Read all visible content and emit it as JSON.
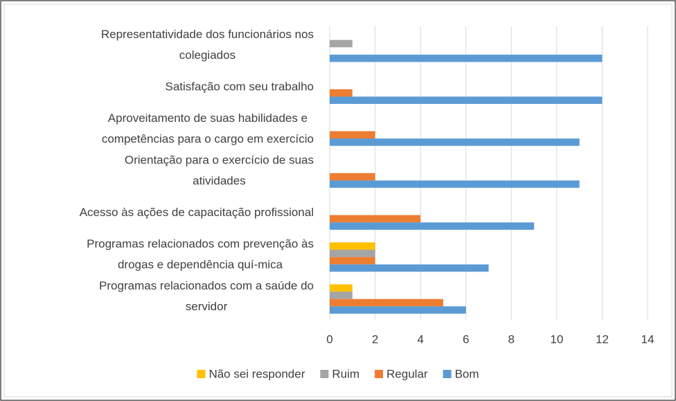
{
  "chart_data": {
    "type": "bar",
    "orientation": "horizontal",
    "categories": [
      [
        "Representatividade dos funcionários nos",
        "colegiados"
      ],
      [
        "Satisfação com seu trabalho"
      ],
      [
        "Aproveitamento de suas habilidades e",
        "competências para o cargo em exercício"
      ],
      [
        "Orientação para o exercício de suas",
        "atividades"
      ],
      [
        "Acesso às ações de capacitação profissional"
      ],
      [
        "Programas relacionados com prevenção às",
        "drogas e dependência quí-mica"
      ],
      [
        "Programas relacionados com a saúde do",
        "servidor"
      ]
    ],
    "series": [
      {
        "name": "Não sei responder",
        "color": "#FFC000",
        "values": [
          0,
          0,
          0,
          0,
          0,
          2,
          1
        ]
      },
      {
        "name": "Ruim",
        "color": "#A5A5A5",
        "values": [
          1,
          0,
          0,
          0,
          0,
          2,
          1
        ]
      },
      {
        "name": "Regular",
        "color": "#ED7D31",
        "values": [
          0,
          1,
          2,
          2,
          4,
          2,
          5
        ]
      },
      {
        "name": "Bom",
        "color": "#5B9BD5",
        "values": [
          12,
          12,
          11,
          11,
          9,
          7,
          6
        ]
      }
    ],
    "xlim": [
      0,
      14
    ],
    "xticks": [
      0,
      2,
      4,
      6,
      8,
      10,
      12,
      14
    ],
    "grid": true,
    "legend": "bottom"
  }
}
